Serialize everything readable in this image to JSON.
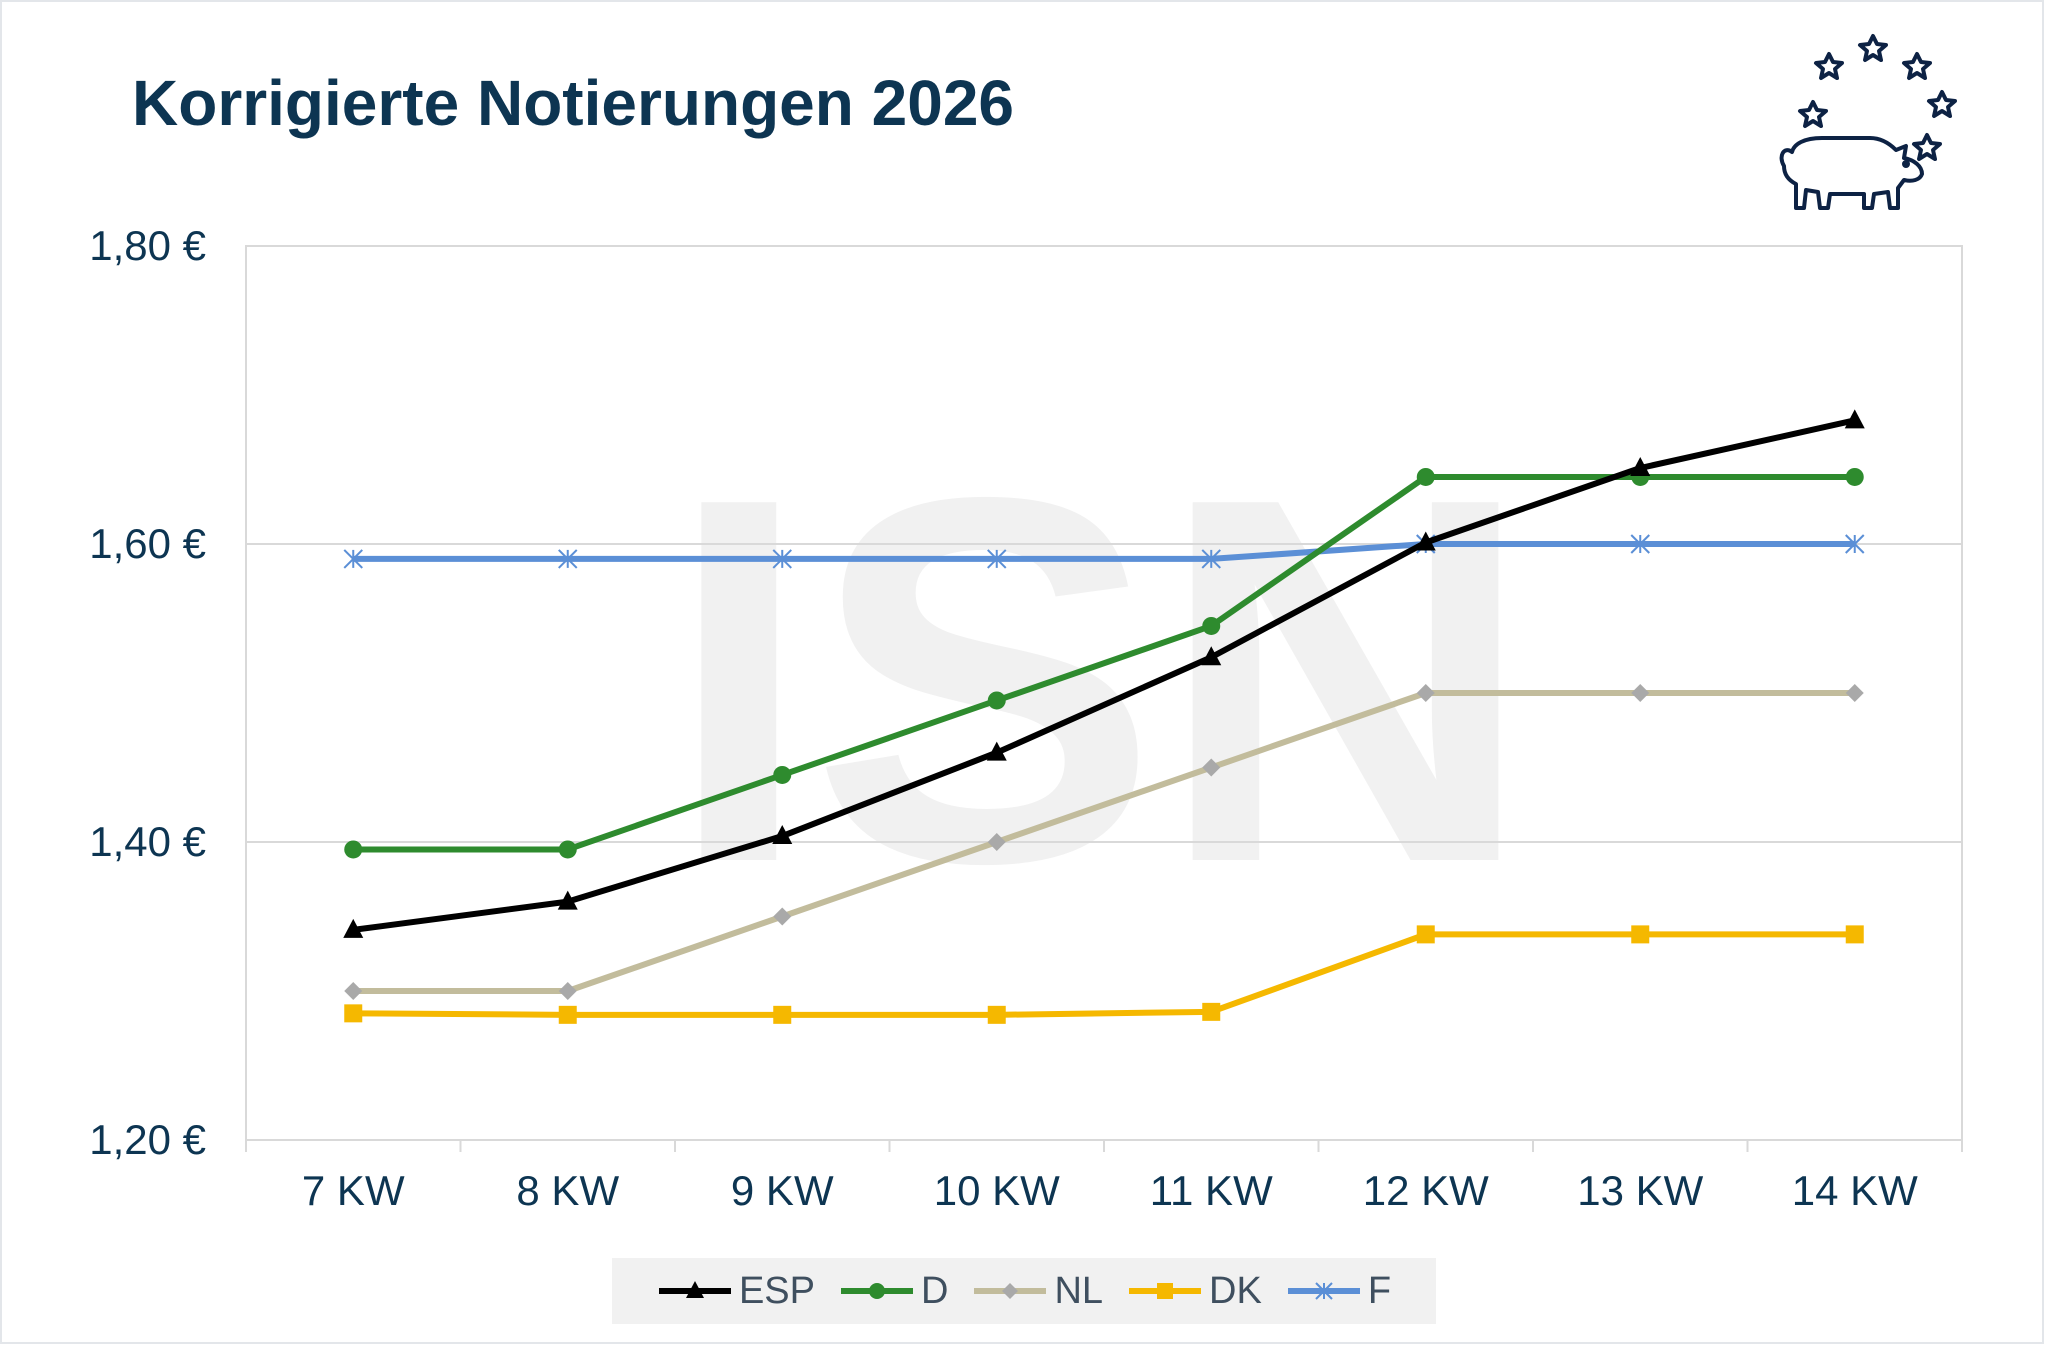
{
  "chart_data": {
    "type": "line",
    "title": "Korrigierte Notierungen 2026",
    "watermark": "ISN",
    "categories": [
      "7 KW",
      "8 KW",
      "9 KW",
      "10 KW",
      "11 KW",
      "12 KW",
      "13 KW",
      "14 KW"
    ],
    "y_ticks": [
      "1,20 €",
      "1,40 €",
      "1,60 €",
      "1,80 €"
    ],
    "ylim": [
      1.2,
      1.8
    ],
    "xlabel": "",
    "ylabel": "",
    "grid": true,
    "legend_position": "bottom-center",
    "series": [
      {
        "name": "ESP",
        "color": "#000000",
        "marker": "triangle",
        "values": [
          1.341,
          1.36,
          1.404,
          1.46,
          1.524,
          1.601,
          1.651,
          1.683
        ]
      },
      {
        "name": "D",
        "color": "#2e8b2e",
        "marker": "circle",
        "values": [
          1.395,
          1.395,
          1.445,
          1.495,
          1.545,
          1.645,
          1.645,
          1.645
        ]
      },
      {
        "name": "NL",
        "color": "#c2bc9c",
        "marker": "diamond",
        "values": [
          1.3,
          1.3,
          1.35,
          1.4,
          1.45,
          1.5,
          1.5,
          1.5
        ]
      },
      {
        "name": "DK",
        "color": "#f5b800",
        "marker": "square",
        "values": [
          1.285,
          1.284,
          1.284,
          1.284,
          1.286,
          1.338,
          1.338,
          1.338
        ]
      },
      {
        "name": "F",
        "color": "#5b8fd6",
        "marker": "star",
        "values": [
          1.59,
          1.59,
          1.59,
          1.59,
          1.59,
          1.6,
          1.6,
          1.6
        ]
      }
    ]
  }
}
